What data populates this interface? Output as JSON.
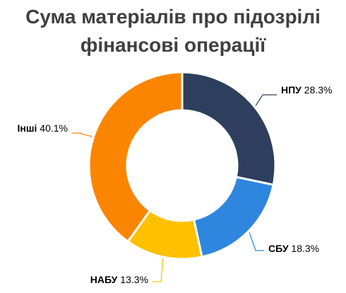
{
  "chart_data": {
    "type": "pie",
    "variant": "donut",
    "title_lines": [
      "Сума матеріалів про підозрілі",
      "фінансові операції"
    ],
    "slices": [
      {
        "name": "НПУ",
        "value": 28.3,
        "label": "28.3%",
        "color": "#2e3f5e"
      },
      {
        "name": "СБУ",
        "value": 18.3,
        "label": "18.3%",
        "color": "#2f86de"
      },
      {
        "name": "НАБУ",
        "value": 13.3,
        "label": "13.3%",
        "color": "#ffc000"
      },
      {
        "name": "Інші",
        "value": 40.1,
        "label": "40.1%",
        "color": "#fb8500"
      }
    ],
    "legend": "none",
    "label_placement": "outside-with-leader-lines"
  }
}
